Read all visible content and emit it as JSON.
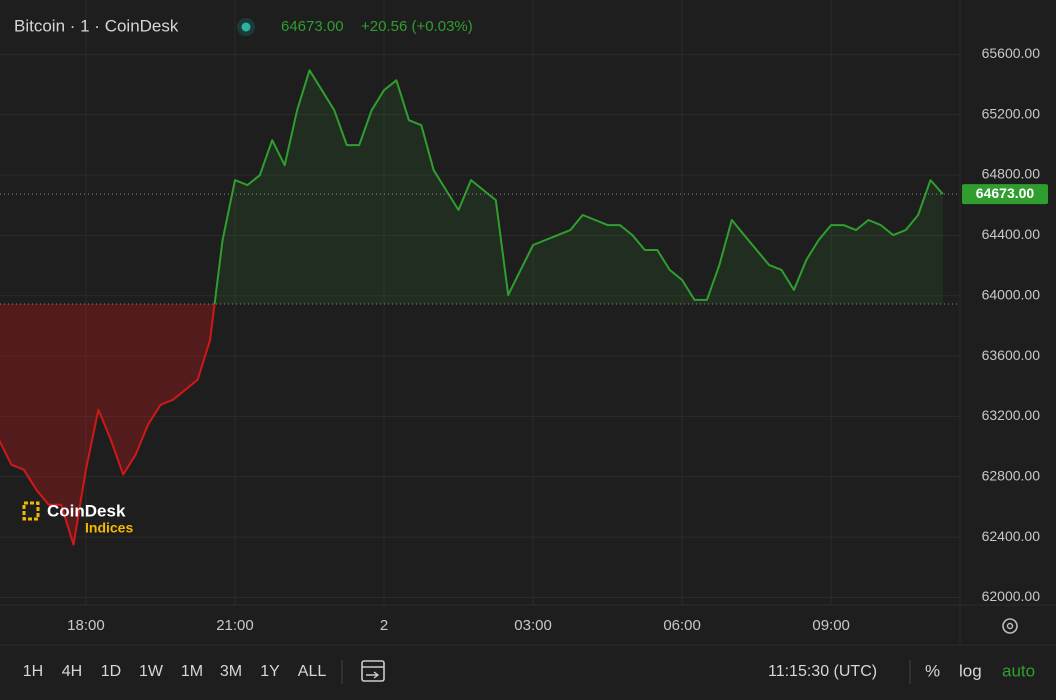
{
  "header": {
    "title": "Bitcoin · 1 · CoinDesk",
    "price": "64673.00",
    "change": "+20.56 (+0.03%)"
  },
  "logo": {
    "name": "CoinDesk",
    "sub": "Indices"
  },
  "chart_data": {
    "type": "line",
    "x": [
      "16:15",
      "16:30",
      "16:45",
      "17:00",
      "17:15",
      "17:30",
      "17:45",
      "18:00",
      "18:15",
      "18:30",
      "18:45",
      "19:00",
      "19:15",
      "19:30",
      "19:45",
      "20:00",
      "20:15",
      "20:30",
      "20:45",
      "21:00",
      "21:15",
      "21:30",
      "21:45",
      "22:00",
      "22:15",
      "22:30",
      "22:45",
      "23:00",
      "23:15",
      "23:30",
      "23:45",
      "00:00",
      "00:15",
      "00:30",
      "00:45",
      "01:00",
      "01:15",
      "01:30",
      "01:45",
      "02:00",
      "02:15",
      "02:30",
      "02:45",
      "03:00",
      "03:15",
      "03:30",
      "03:45",
      "04:00",
      "04:15",
      "04:30",
      "04:45",
      "05:00",
      "05:15",
      "05:30",
      "05:45",
      "06:00",
      "06:15",
      "06:30",
      "06:45",
      "07:00",
      "07:15",
      "07:30",
      "07:45",
      "08:00",
      "08:15",
      "08:30",
      "08:45",
      "09:00",
      "09:15",
      "09:30",
      "09:45",
      "10:00",
      "10:15",
      "10:30",
      "10:45",
      "11:00",
      "11:15"
    ],
    "values": [
      63045,
      62880,
      62847,
      62714,
      62615,
      62615,
      62350,
      62847,
      63244,
      63045,
      62814,
      62946,
      63145,
      63277,
      63310,
      63376,
      63443,
      63707,
      64369,
      64766,
      64733,
      64799,
      65031,
      64865,
      65229,
      65494,
      65362,
      65229,
      64998,
      64998,
      65229,
      65362,
      65428,
      65163,
      65130,
      64832,
      64700,
      64568,
      64766,
      64700,
      64634,
      64005,
      64171,
      64336,
      64369,
      64402,
      64435,
      64535,
      64502,
      64468,
      64468,
      64402,
      64303,
      64303,
      64171,
      64104,
      63972,
      63972,
      64204,
      64502,
      64402,
      64303,
      64204,
      64171,
      64038,
      64237,
      64369,
      64468,
      64468,
      64435,
      64502,
      64468,
      64402,
      64435,
      64535,
      64766,
      64673
    ],
    "up_color": "#2f9e2f",
    "down_color": "#d01818",
    "baseline": 63945,
    "price_line": {
      "value": 64673,
      "label": "64673.00"
    },
    "ylim": [
      61950,
      65960
    ],
    "yticks": [
      {
        "value": 62000,
        "label": "62000.00"
      },
      {
        "value": 62400,
        "label": "62400.00"
      },
      {
        "value": 62800,
        "label": "62800.00"
      },
      {
        "value": 63200,
        "label": "63200.00"
      },
      {
        "value": 63600,
        "label": "63600.00"
      },
      {
        "value": 64000,
        "label": "64000.00"
      },
      {
        "value": 64400,
        "label": "64400.00"
      },
      {
        "value": 64800,
        "label": "64800.00"
      },
      {
        "value": 65200,
        "label": "65200.00"
      },
      {
        "value": 65600,
        "label": "65600.00"
      }
    ],
    "xticks": [
      {
        "value": "18:00",
        "label": "18:00"
      },
      {
        "value": "21:00",
        "label": "21:00"
      },
      {
        "value": "00:00",
        "label": "2"
      },
      {
        "value": "03:00",
        "label": "03:00"
      },
      {
        "value": "06:00",
        "label": "06:00"
      },
      {
        "value": "09:00",
        "label": "09:00"
      }
    ],
    "grid": true
  },
  "toolbar": {
    "ranges": [
      "1H",
      "4H",
      "1D",
      "1W",
      "1M",
      "3M",
      "1Y",
      "ALL"
    ],
    "clock": "11:15:30 (UTC)",
    "percent": "%",
    "log": "log",
    "auto": "auto"
  }
}
